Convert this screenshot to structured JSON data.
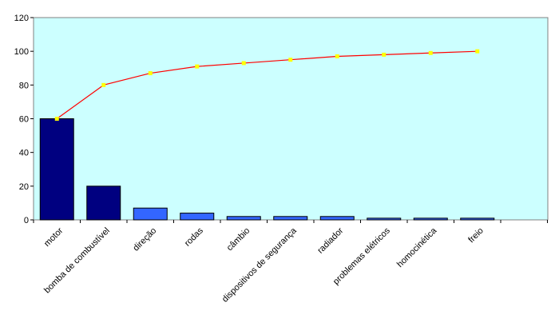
{
  "chart_data": {
    "type": "bar",
    "title": "",
    "xlabel": "",
    "ylabel": "",
    "ylim": [
      0,
      120
    ],
    "yticks": [
      0,
      20,
      40,
      60,
      80,
      100,
      120
    ],
    "grid": false,
    "legend": "none",
    "plot_background": "#ccffff",
    "categories": [
      "motor",
      "bomba de combustível",
      "direção",
      "rodas",
      "câmbio",
      "dispositivos de segurança",
      "radiador",
      "problemas elétricos",
      "homocinética",
      "freio"
    ],
    "bar_values": [
      60,
      20,
      7,
      4,
      2,
      2,
      2,
      1,
      1,
      1
    ],
    "bar_colors": [
      "#000080",
      "#000080",
      "#3366ff",
      "#3366ff",
      "#3366ff",
      "#3366ff",
      "#3366ff",
      "#3366ff",
      "#3366ff",
      "#3366ff"
    ],
    "cumulative_values": [
      60,
      80,
      87,
      91,
      93,
      95,
      97,
      98,
      99,
      100
    ],
    "line_color": "#ff0000",
    "marker_color": "#ffff00"
  }
}
